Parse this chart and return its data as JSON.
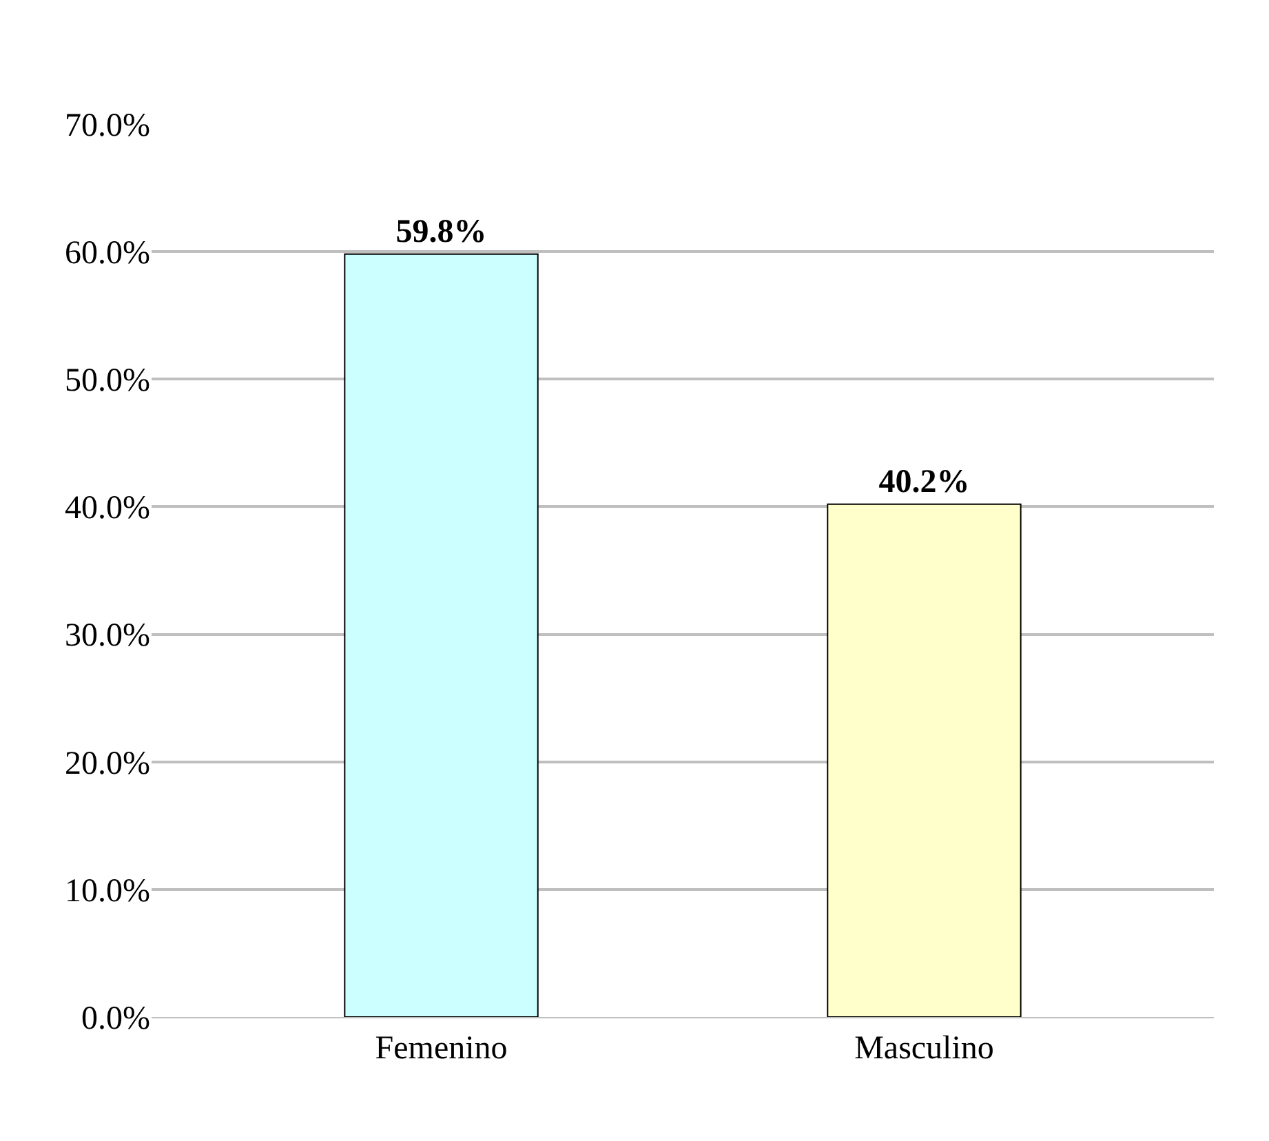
{
  "chart_data": {
    "type": "bar",
    "categories": [
      "Femenino",
      "Masculino"
    ],
    "values": [
      59.8,
      40.2
    ],
    "colors": [
      "#ccffff",
      "#ffffcc"
    ],
    "value_labels": [
      "59.8%",
      "40.2%"
    ],
    "ylim": [
      0,
      70
    ],
    "yticks": [
      {
        "value": 0,
        "label": "0.0%"
      },
      {
        "value": 10,
        "label": "10.0%"
      },
      {
        "value": 20,
        "label": "20.0%"
      },
      {
        "value": 30,
        "label": "30.0%"
      },
      {
        "value": 40,
        "label": "40.0%"
      },
      {
        "value": 50,
        "label": "50.0%"
      },
      {
        "value": 60,
        "label": "60.0%"
      },
      {
        "value": 70,
        "label": "70.0%"
      }
    ],
    "grid": "y"
  }
}
